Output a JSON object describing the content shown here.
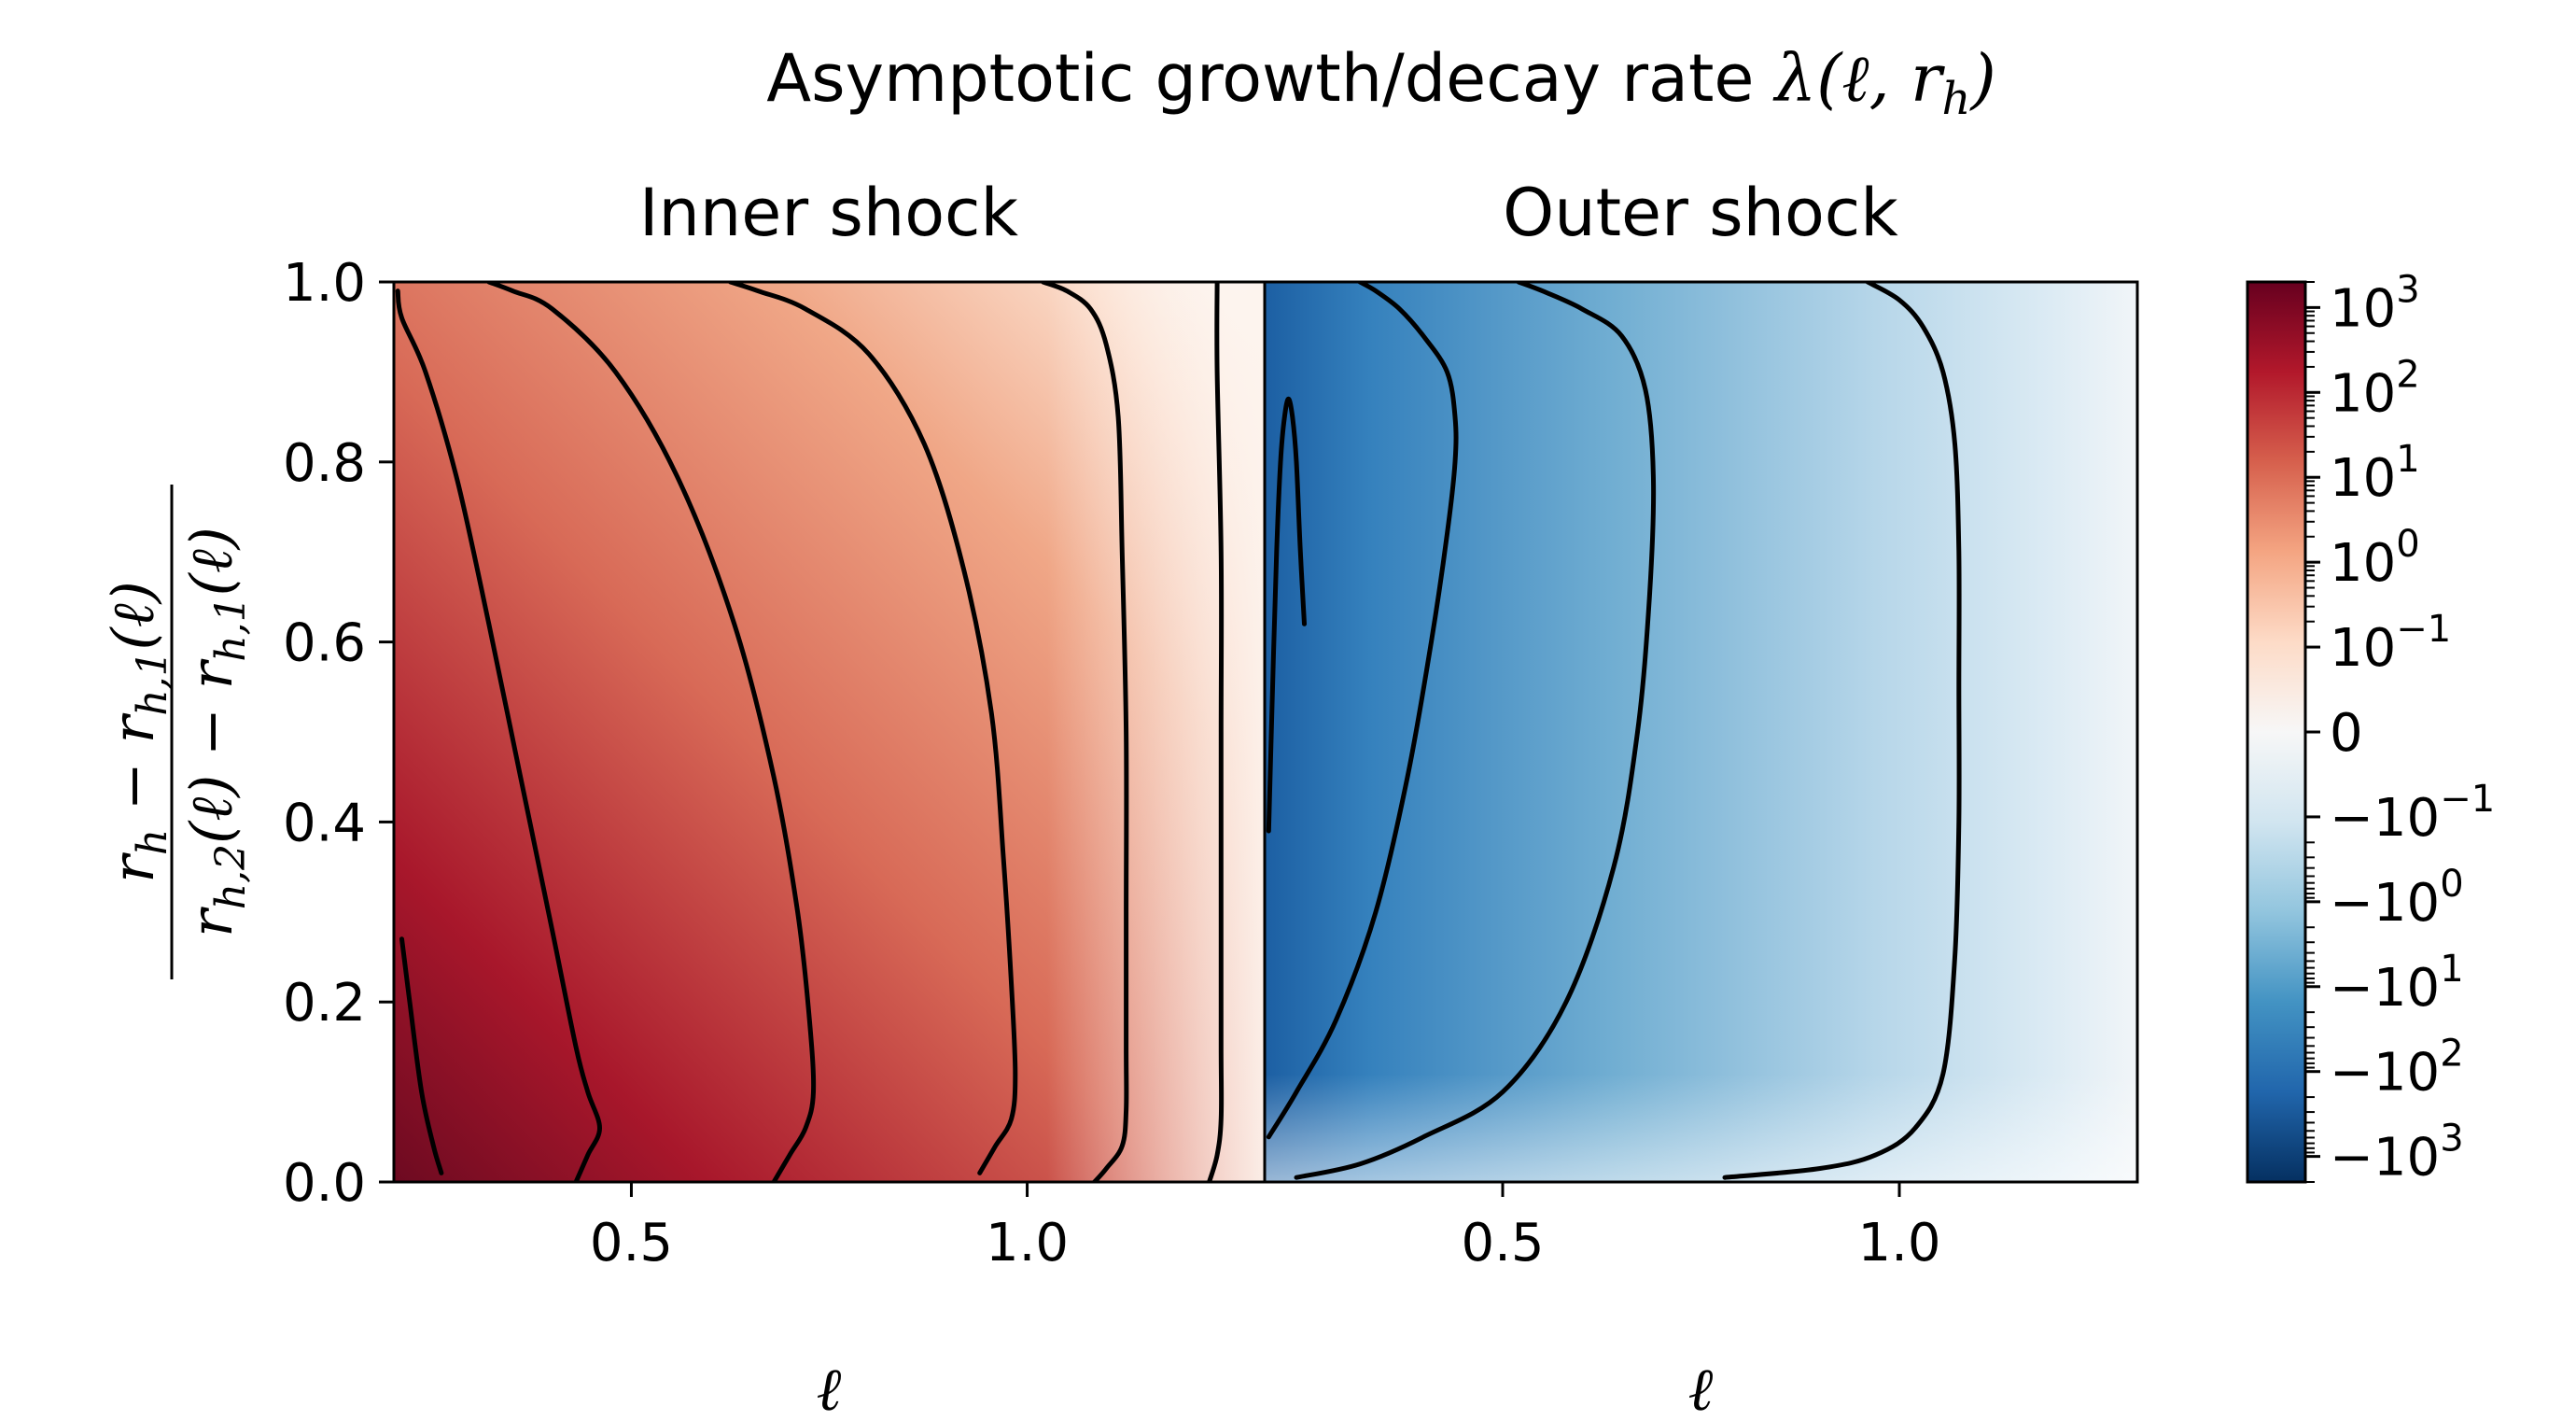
{
  "chart_data": [
    {
      "type": "heatmap",
      "suptitle": "Asymptotic growth/decay rate λ(ℓ, r_h)",
      "title": "Inner shock",
      "xlabel": "ℓ",
      "ylabel": "(r_h − r_h,1(ℓ)) / (r_h,2(ℓ) − r_h,1(ℓ))",
      "xlim": [
        0.2,
        1.3
      ],
      "ylim": [
        0,
        1
      ],
      "x_ticks": [
        0.5,
        1.0
      ],
      "x_tick_labels": [
        "0.5",
        "1.0"
      ],
      "y_ticks": [
        0,
        0.2,
        0.4,
        0.6,
        0.8,
        1.0
      ],
      "y_tick_labels": [
        "0.0",
        "0.2",
        "0.4",
        "0.6",
        "0.8",
        "1.0"
      ],
      "colormap": "RdBu_r",
      "grid": false,
      "sign": "positive",
      "contour_color": "#000000",
      "contours": [
        {
          "id": "c1",
          "points": [
            [
              0.21,
              0.27
            ],
            [
              0.22,
              0.2
            ],
            [
              0.235,
              0.1
            ],
            [
              0.25,
              0.04
            ],
            [
              0.26,
              0.01
            ]
          ]
        },
        {
          "id": "c2",
          "points": [
            [
              0.205,
              0.99
            ],
            [
              0.21,
              0.96
            ],
            [
              0.24,
              0.9
            ],
            [
              0.28,
              0.78
            ],
            [
              0.32,
              0.62
            ],
            [
              0.36,
              0.45
            ],
            [
              0.4,
              0.28
            ],
            [
              0.43,
              0.15
            ],
            [
              0.445,
              0.1
            ],
            [
              0.46,
              0.06
            ],
            [
              0.445,
              0.03
            ],
            [
              0.43,
              0.0
            ]
          ]
        },
        {
          "id": "c3",
          "points": [
            [
              0.32,
              1.0
            ],
            [
              0.35,
              0.99
            ],
            [
              0.4,
              0.97
            ],
            [
              0.48,
              0.9
            ],
            [
              0.56,
              0.78
            ],
            [
              0.63,
              0.62
            ],
            [
              0.68,
              0.45
            ],
            [
              0.71,
              0.3
            ],
            [
              0.725,
              0.18
            ],
            [
              0.73,
              0.1
            ],
            [
              0.72,
              0.06
            ],
            [
              0.7,
              0.03
            ],
            [
              0.68,
              0.0
            ]
          ]
        },
        {
          "id": "c4",
          "points": [
            [
              0.625,
              1.0
            ],
            [
              0.66,
              0.99
            ],
            [
              0.72,
              0.97
            ],
            [
              0.8,
              0.92
            ],
            [
              0.87,
              0.82
            ],
            [
              0.92,
              0.68
            ],
            [
              0.955,
              0.52
            ],
            [
              0.97,
              0.36
            ],
            [
              0.98,
              0.22
            ],
            [
              0.985,
              0.12
            ],
            [
              0.98,
              0.07
            ],
            [
              0.96,
              0.04
            ],
            [
              0.94,
              0.01
            ]
          ]
        },
        {
          "id": "c5",
          "points": [
            [
              1.02,
              1.0
            ],
            [
              1.05,
              0.99
            ],
            [
              1.08,
              0.97
            ],
            [
              1.1,
              0.93
            ],
            [
              1.115,
              0.85
            ],
            [
              1.12,
              0.7
            ],
            [
              1.125,
              0.5
            ],
            [
              1.125,
              0.3
            ],
            [
              1.125,
              0.15
            ],
            [
              1.125,
              0.08
            ],
            [
              1.12,
              0.04
            ],
            [
              1.1,
              0.015
            ],
            [
              1.085,
              0.0
            ]
          ]
        },
        {
          "id": "c6",
          "points": [
            [
              1.24,
              1.0
            ],
            [
              1.24,
              0.9
            ],
            [
              1.245,
              0.7
            ],
            [
              1.245,
              0.5
            ],
            [
              1.245,
              0.3
            ],
            [
              1.245,
              0.15
            ],
            [
              1.245,
              0.07
            ],
            [
              1.24,
              0.03
            ],
            [
              1.23,
              0.0
            ]
          ]
        }
      ]
    },
    {
      "type": "heatmap",
      "title": "Outer shock",
      "xlabel": "ℓ",
      "xlim": [
        0.2,
        1.3
      ],
      "ylim": [
        0,
        1
      ],
      "x_ticks": [
        0.5,
        1.0
      ],
      "x_tick_labels": [
        "0.5",
        "1.0"
      ],
      "colormap": "RdBu_r",
      "grid": false,
      "sign": "negative",
      "contour_color": "#000000",
      "contours": [
        {
          "id": "o1",
          "points": [
            [
              0.205,
              0.39
            ],
            [
              0.21,
              0.55
            ],
            [
              0.215,
              0.7
            ],
            [
              0.22,
              0.8
            ],
            [
              0.225,
              0.85
            ],
            [
              0.23,
              0.87
            ],
            [
              0.235,
              0.85
            ],
            [
              0.24,
              0.8
            ],
            [
              0.245,
              0.7
            ],
            [
              0.25,
              0.62
            ]
          ]
        },
        {
          "id": "o2",
          "points": [
            [
              0.205,
              0.05
            ],
            [
              0.24,
              0.1
            ],
            [
              0.29,
              0.18
            ],
            [
              0.34,
              0.3
            ],
            [
              0.38,
              0.45
            ],
            [
              0.41,
              0.6
            ],
            [
              0.43,
              0.72
            ],
            [
              0.44,
              0.8
            ],
            [
              0.44,
              0.85
            ],
            [
              0.43,
              0.9
            ],
            [
              0.4,
              0.94
            ],
            [
              0.37,
              0.97
            ],
            [
              0.34,
              0.99
            ],
            [
              0.32,
              1.0
            ]
          ]
        },
        {
          "id": "o3",
          "points": [
            [
              0.24,
              0.005
            ],
            [
              0.32,
              0.02
            ],
            [
              0.4,
              0.05
            ],
            [
              0.5,
              0.1
            ],
            [
              0.58,
              0.2
            ],
            [
              0.64,
              0.35
            ],
            [
              0.67,
              0.5
            ],
            [
              0.685,
              0.65
            ],
            [
              0.69,
              0.78
            ],
            [
              0.68,
              0.88
            ],
            [
              0.65,
              0.94
            ],
            [
              0.6,
              0.97
            ],
            [
              0.55,
              0.99
            ],
            [
              0.52,
              1.0
            ]
          ]
        },
        {
          "id": "o4",
          "points": [
            [
              0.78,
              0.005
            ],
            [
              0.9,
              0.015
            ],
            [
              0.97,
              0.03
            ],
            [
              1.02,
              0.06
            ],
            [
              1.055,
              0.12
            ],
            [
              1.07,
              0.25
            ],
            [
              1.075,
              0.4
            ],
            [
              1.075,
              0.55
            ],
            [
              1.075,
              0.7
            ],
            [
              1.07,
              0.82
            ],
            [
              1.055,
              0.9
            ],
            [
              1.03,
              0.95
            ],
            [
              1.0,
              0.98
            ],
            [
              0.96,
              1.0
            ]
          ]
        }
      ]
    },
    {
      "type": "colorbar",
      "scale": "symlog",
      "range": [
        -2000,
        2000
      ],
      "linthresh": 0.1,
      "tick_values": [
        1000,
        100,
        10,
        1,
        0.1,
        0,
        -0.1,
        -1,
        -10,
        -100,
        -1000
      ],
      "tick_labels": [
        {
          "base": "10",
          "exp": "3"
        },
        {
          "base": "10",
          "exp": "2"
        },
        {
          "base": "10",
          "exp": "1"
        },
        {
          "base": "10",
          "exp": "0"
        },
        {
          "base": "10",
          "exp": "−1"
        },
        {
          "base": "0",
          "exp": ""
        },
        {
          "base": "−10",
          "exp": "−1"
        },
        {
          "base": "−10",
          "exp": "0"
        },
        {
          "base": "−10",
          "exp": "1"
        },
        {
          "base": "−10",
          "exp": "2"
        },
        {
          "base": "−10",
          "exp": "3"
        }
      ]
    }
  ]
}
